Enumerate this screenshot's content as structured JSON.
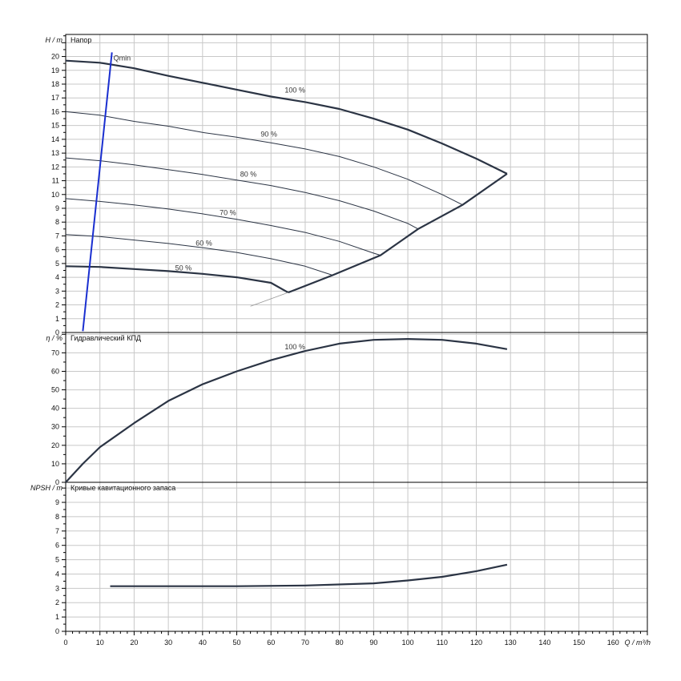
{
  "chart_data": [
    {
      "type": "line",
      "title": "Напор",
      "ylabel": "H / m",
      "xlim": [
        0,
        170
      ],
      "ylim": [
        0,
        21
      ],
      "grid": true,
      "x_ticks": [
        "0",
        "10",
        "20",
        "30",
        "40",
        "50",
        "60",
        "70",
        "80",
        "90",
        "100",
        "110",
        "120",
        "130",
        "140",
        "150",
        "160"
      ],
      "y_ticks": [
        "0",
        "1",
        "2",
        "3",
        "4",
        "5",
        "6",
        "7",
        "8",
        "9",
        "10",
        "11",
        "12",
        "13",
        "14",
        "15",
        "16",
        "17",
        "18",
        "19",
        "20"
      ],
      "series": [
        {
          "name": "100 %",
          "label_at": [
            64,
            17.4
          ],
          "points": [
            [
              0,
              19.7
            ],
            [
              10,
              19.55
            ],
            [
              20,
              19.15
            ],
            [
              30,
              18.6
            ],
            [
              40,
              18.1
            ],
            [
              50,
              17.6
            ],
            [
              60,
              17.1
            ],
            [
              70,
              16.7
            ],
            [
              80,
              16.2
            ],
            [
              90,
              15.5
            ],
            [
              100,
              14.7
            ],
            [
              110,
              13.7
            ],
            [
              120,
              12.6
            ],
            [
              129,
              11.5
            ]
          ]
        },
        {
          "name": "90 %",
          "label_at": [
            57,
            14.2
          ],
          "points": [
            [
              0,
              16.0
            ],
            [
              10,
              15.75
            ],
            [
              20,
              15.3
            ],
            [
              30,
              14.95
            ],
            [
              40,
              14.5
            ],
            [
              50,
              14.15
            ],
            [
              60,
              13.75
            ],
            [
              70,
              13.3
            ],
            [
              80,
              12.75
            ],
            [
              90,
              12.0
            ],
            [
              100,
              11.1
            ],
            [
              110,
              10.0
            ],
            [
              116,
              9.25
            ]
          ]
        },
        {
          "name": "80 %",
          "label_at": [
            51,
            11.3
          ],
          "points": [
            [
              0,
              12.65
            ],
            [
              10,
              12.45
            ],
            [
              20,
              12.15
            ],
            [
              30,
              11.8
            ],
            [
              40,
              11.45
            ],
            [
              50,
              11.05
            ],
            [
              60,
              10.65
            ],
            [
              70,
              10.15
            ],
            [
              80,
              9.55
            ],
            [
              90,
              8.8
            ],
            [
              100,
              7.9
            ],
            [
              103,
              7.5
            ]
          ]
        },
        {
          "name": "70 %",
          "label_at": [
            45,
            8.5
          ],
          "points": [
            [
              0,
              9.7
            ],
            [
              10,
              9.5
            ],
            [
              20,
              9.25
            ],
            [
              30,
              8.95
            ],
            [
              40,
              8.6
            ],
            [
              50,
              8.2
            ],
            [
              60,
              7.75
            ],
            [
              70,
              7.25
            ],
            [
              80,
              6.6
            ],
            [
              90,
              5.75
            ],
            [
              92,
              5.6
            ]
          ]
        },
        {
          "name": "60 %",
          "label_at": [
            38,
            6.3
          ],
          "points": [
            [
              0,
              7.1
            ],
            [
              10,
              6.95
            ],
            [
              20,
              6.7
            ],
            [
              30,
              6.45
            ],
            [
              40,
              6.15
            ],
            [
              50,
              5.8
            ],
            [
              60,
              5.35
            ],
            [
              70,
              4.8
            ],
            [
              78,
              4.15
            ]
          ]
        },
        {
          "name": "50 %",
          "label_at": [
            32,
            4.5
          ],
          "points": [
            [
              0,
              4.8
            ],
            [
              10,
              4.75
            ],
            [
              20,
              4.6
            ],
            [
              30,
              4.45
            ],
            [
              40,
              4.25
            ],
            [
              50,
              4.0
            ],
            [
              60,
              3.6
            ],
            [
              65,
              2.9
            ]
          ]
        }
      ],
      "qmin_line": {
        "name": "Qmin",
        "points": [
          [
            5,
            0.1
          ],
          [
            13.5,
            20.3
          ]
        ]
      },
      "limit_curve": [
        [
          65,
          2.9
        ],
        [
          78,
          4.15
        ],
        [
          92,
          5.6
        ],
        [
          103,
          7.5
        ],
        [
          116,
          9.25
        ],
        [
          129,
          11.5
        ]
      ],
      "extension_line": [
        [
          54,
          1.9
        ],
        [
          65,
          2.9
        ]
      ]
    },
    {
      "type": "line",
      "title": "Гидравлический КПД",
      "ylabel": "η / %",
      "xlim": [
        0,
        170
      ],
      "ylim": [
        0,
        80
      ],
      "grid": true,
      "y_ticks": [
        "0",
        "10",
        "20",
        "30",
        "40",
        "50",
        "60",
        "70"
      ],
      "series": [
        {
          "name": "100 %",
          "label_at": [
            64,
            72
          ],
          "points": [
            [
              0,
              0
            ],
            [
              5,
              10
            ],
            [
              10,
              19
            ],
            [
              20,
              32
            ],
            [
              30,
              44
            ],
            [
              40,
              53
            ],
            [
              50,
              60
            ],
            [
              60,
              66
            ],
            [
              70,
              71
            ],
            [
              80,
              75
            ],
            [
              90,
              77
            ],
            [
              100,
              77.5
            ],
            [
              110,
              77
            ],
            [
              120,
              75
            ],
            [
              129,
              72
            ]
          ]
        }
      ]
    },
    {
      "type": "line",
      "title": "Кривые кавитационного запаса",
      "ylabel": "NPSH / m",
      "xlabel": "Q / m³/h",
      "xlim": [
        0,
        170
      ],
      "ylim": [
        0,
        10
      ],
      "grid": true,
      "y_ticks": [
        "0",
        "1",
        "2",
        "3",
        "4",
        "5",
        "6",
        "7",
        "8",
        "9"
      ],
      "series": [
        {
          "name": "",
          "points": [
            [
              13,
              3.15
            ],
            [
              30,
              3.15
            ],
            [
              50,
              3.15
            ],
            [
              70,
              3.2
            ],
            [
              90,
              3.35
            ],
            [
              100,
              3.55
            ],
            [
              110,
              3.8
            ],
            [
              120,
              4.2
            ],
            [
              129,
              4.65
            ]
          ]
        }
      ]
    }
  ]
}
